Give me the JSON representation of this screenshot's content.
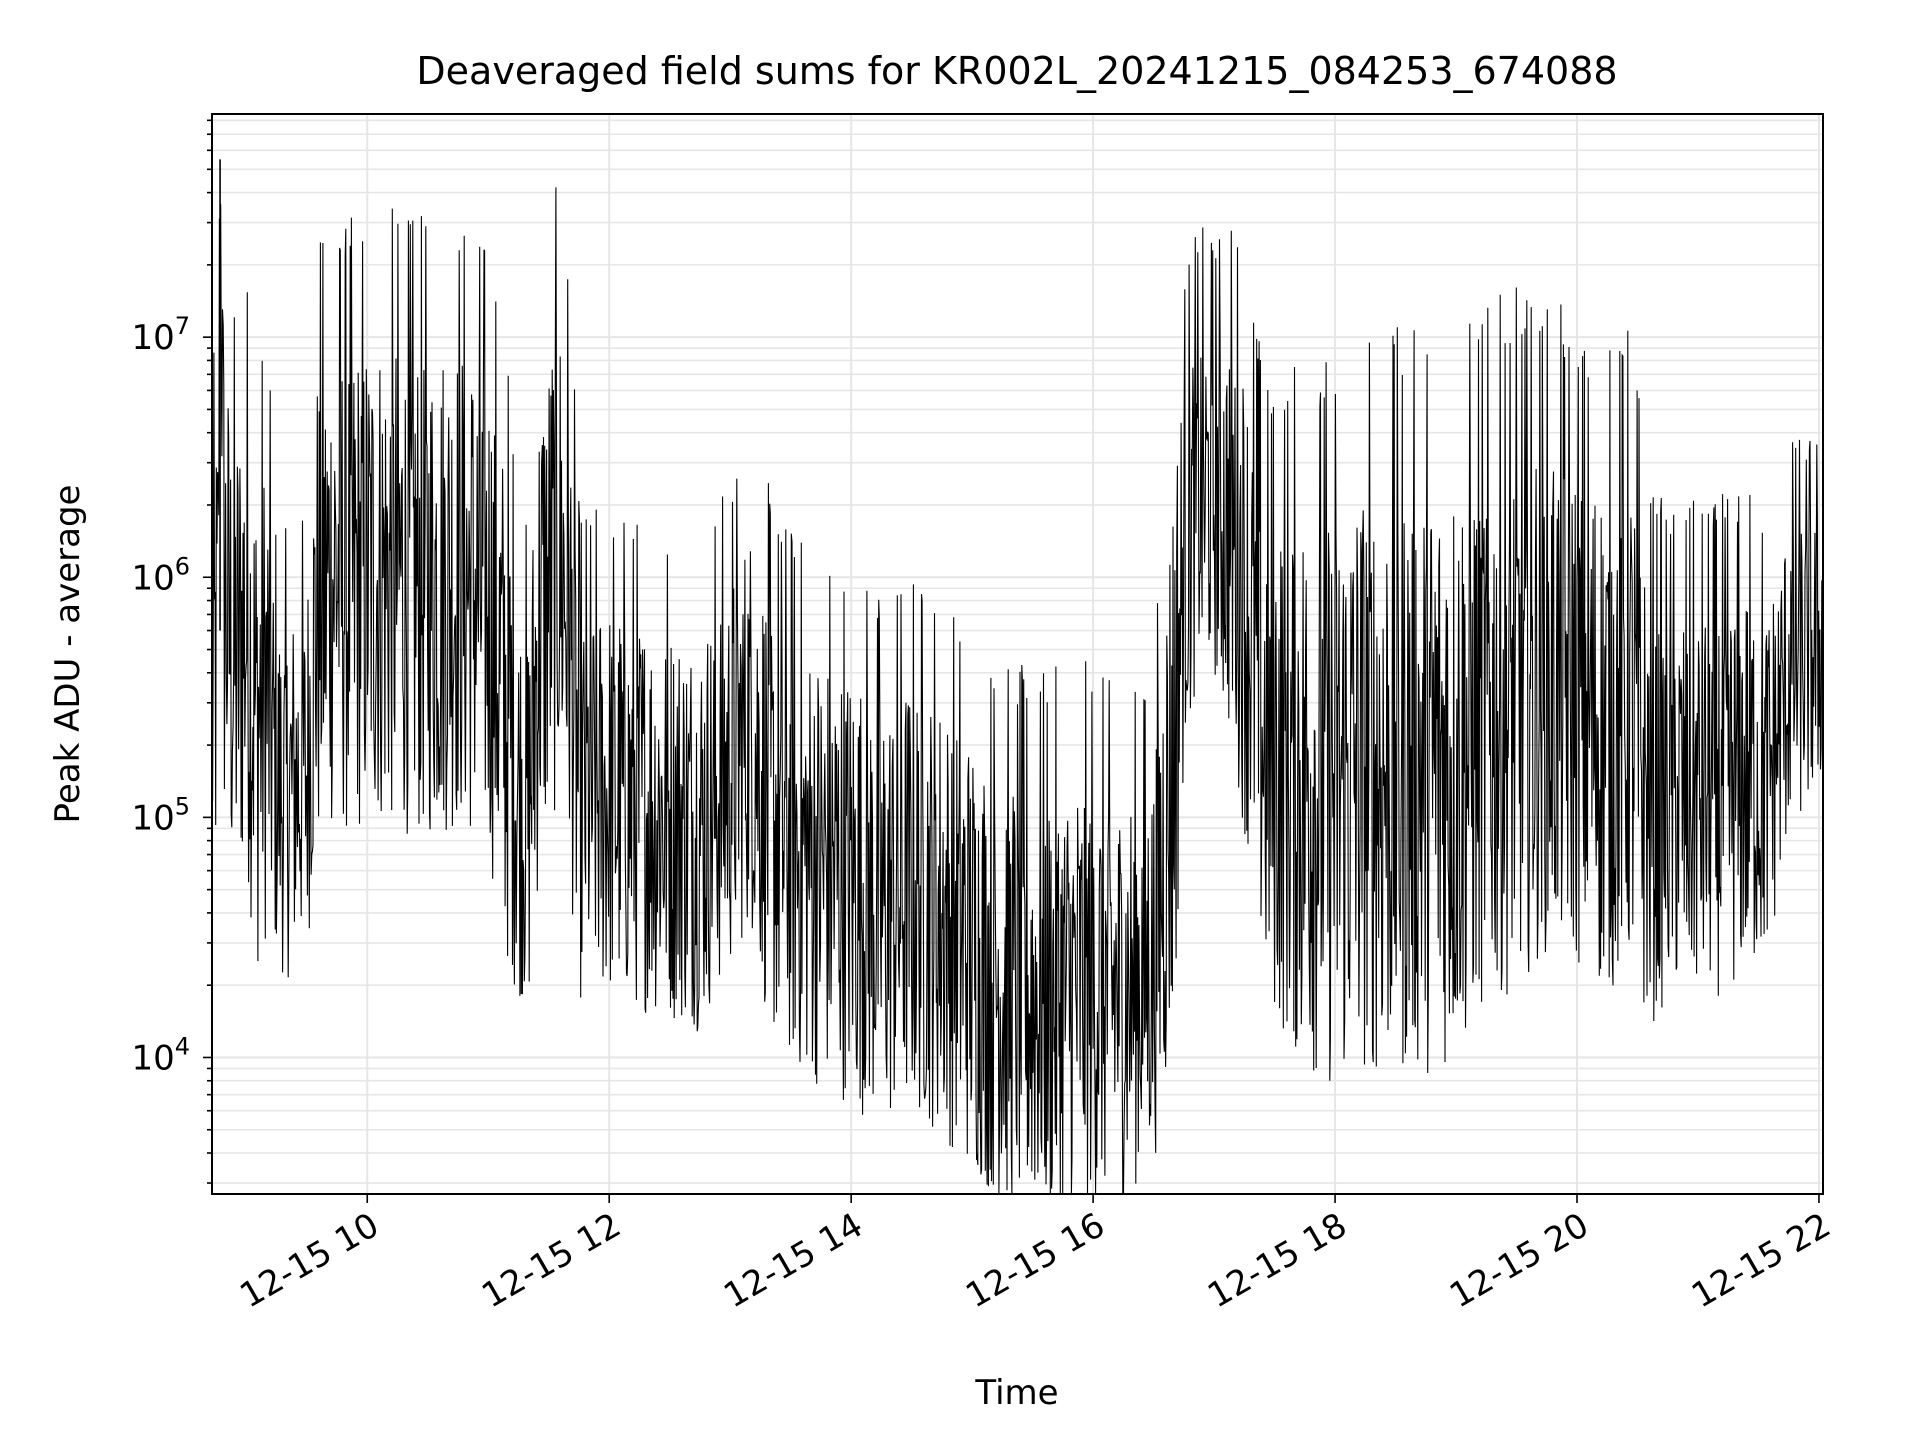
{
  "chart_data": {
    "type": "line",
    "title": "Deaveraged field sums for KR002L_20241215_084253_674088",
    "xlabel": "Time",
    "ylabel": "Peak ADU - average",
    "yscale": "log",
    "ylim": [
      2700,
      85000000
    ],
    "xlim": [
      "2024-12-15 08:43",
      "2024-12-15 22:02"
    ],
    "x_ticks": [
      {
        "x": "2024-12-15 10:00",
        "label": "12-15 10"
      },
      {
        "x": "2024-12-15 12:00",
        "label": "12-15 12"
      },
      {
        "x": "2024-12-15 14:00",
        "label": "12-15 14"
      },
      {
        "x": "2024-12-15 16:00",
        "label": "12-15 16"
      },
      {
        "x": "2024-12-15 18:00",
        "label": "12-15 18"
      },
      {
        "x": "2024-12-15 20:00",
        "label": "12-15 20"
      },
      {
        "x": "2024-12-15 22:00",
        "label": "12-15 22"
      }
    ],
    "y_ticks": [
      {
        "value": 10000,
        "base": "10",
        "exp": "4"
      },
      {
        "value": 100000,
        "base": "10",
        "exp": "5"
      },
      {
        "value": 1000000,
        "base": "10",
        "exp": "6"
      },
      {
        "value": 10000000,
        "base": "10",
        "exp": "7"
      }
    ],
    "grid": true,
    "legend": "none",
    "line_color": "#000000",
    "grid_color": "#e6e6e6",
    "series": [
      {
        "x": [
          "2024-12-15 08:43",
          "2024-12-15 08:46",
          "2024-12-15 08:47",
          "2024-12-15 08:49",
          "2024-12-15 08:54",
          "2024-12-15 09:00",
          "2024-12-15 09:05",
          "2024-12-15 09:10",
          "2024-12-15 09:15",
          "2024-12-15 09:20",
          "2024-12-15 09:25",
          "2024-12-15 09:30",
          "2024-12-15 09:35",
          "2024-12-15 09:40",
          "2024-12-15 09:45",
          "2024-12-15 09:50",
          "2024-12-15 10:00",
          "2024-12-15 10:15",
          "2024-12-15 10:30",
          "2024-12-15 10:45",
          "2024-12-15 11:00",
          "2024-12-15 11:10",
          "2024-12-15 11:15",
          "2024-12-15 11:20",
          "2024-12-15 11:25",
          "2024-12-15 11:30",
          "2024-12-15 11:35",
          "2024-12-15 11:40",
          "2024-12-15 11:45",
          "2024-12-15 12:00",
          "2024-12-15 12:15",
          "2024-12-15 12:30",
          "2024-12-15 12:45",
          "2024-12-15 13:00",
          "2024-12-15 13:10",
          "2024-12-15 13:20",
          "2024-12-15 13:35",
          "2024-12-15 13:50",
          "2024-12-15 14:00",
          "2024-12-15 14:10",
          "2024-12-15 14:15",
          "2024-12-15 14:30",
          "2024-12-15 14:45",
          "2024-12-15 15:00",
          "2024-12-15 15:15",
          "2024-12-15 15:30",
          "2024-12-15 15:45",
          "2024-12-15 16:00",
          "2024-12-15 16:15",
          "2024-12-15 16:30",
          "2024-12-15 16:40",
          "2024-12-15 16:45",
          "2024-12-15 16:52",
          "2024-12-15 17:00",
          "2024-12-15 17:10",
          "2024-12-15 17:20",
          "2024-12-15 17:25",
          "2024-12-15 17:40",
          "2024-12-15 18:00",
          "2024-12-15 18:15",
          "2024-12-15 18:30",
          "2024-12-15 18:45",
          "2024-12-15 19:00",
          "2024-12-15 19:15",
          "2024-12-15 19:30",
          "2024-12-15 19:45",
          "2024-12-15 20:00",
          "2024-12-15 20:15",
          "2024-12-15 20:25",
          "2024-12-15 20:30",
          "2024-12-15 20:35",
          "2024-12-15 20:45",
          "2024-12-15 21:00",
          "2024-12-15 21:15",
          "2024-12-15 21:25",
          "2024-12-15 21:35",
          "2024-12-15 21:45",
          "2024-12-15 22:00",
          "2024-12-15 22:02"
        ],
        "y": [
          250000,
          600000,
          55000000,
          900000,
          400000,
          700000,
          250000,
          350000,
          140000,
          120000,
          140000,
          160000,
          700000,
          900000,
          1100000,
          900000,
          1000000,
          1000000,
          900000,
          1000000,
          800000,
          250000,
          130000,
          100000,
          600000,
          900000,
          1300000,
          700000,
          120000,
          120000,
          110000,
          100000,
          90000,
          160000,
          250000,
          100000,
          70000,
          60000,
          55000,
          45000,
          40000,
          50000,
          40000,
          28000,
          20000,
          18000,
          18000,
          20000,
          18000,
          25000,
          200000,
          1200000,
          2200000,
          2200000,
          1500000,
          500000,
          200000,
          150000,
          130000,
          160000,
          150000,
          160000,
          170000,
          250000,
          300000,
          350000,
          300000,
          220000,
          300000,
          200000,
          110000,
          120000,
          120000,
          130000,
          150000,
          140000,
          400000,
          500000,
          600000
        ],
        "spread": [
          2.2,
          2.5,
          1.0,
          2.5,
          2.5,
          2.5,
          2.5,
          2.5,
          1.8,
          1.8,
          1.8,
          1.8,
          2.5,
          2.5,
          2.5,
          2.5,
          2.5,
          2.5,
          2.5,
          2.5,
          2.5,
          2.5,
          2.0,
          2.0,
          2.5,
          2.5,
          2.5,
          2.5,
          2.0,
          2.0,
          2.0,
          2.0,
          2.0,
          2.0,
          2.0,
          2.2,
          2.2,
          2.2,
          2.2,
          2.2,
          2.2,
          2.2,
          2.2,
          2.2,
          2.2,
          2.2,
          2.2,
          2.2,
          2.0,
          2.0,
          3.0,
          2.0,
          1.8,
          1.8,
          2.2,
          2.5,
          2.5,
          2.8,
          3.0,
          3.0,
          3.0,
          3.0,
          3.0,
          2.8,
          2.8,
          2.6,
          2.6,
          2.6,
          2.6,
          2.6,
          2.2,
          2.0,
          2.0,
          2.0,
          2.0,
          1.8,
          1.6,
          1.5,
          1.4
        ]
      }
    ]
  }
}
